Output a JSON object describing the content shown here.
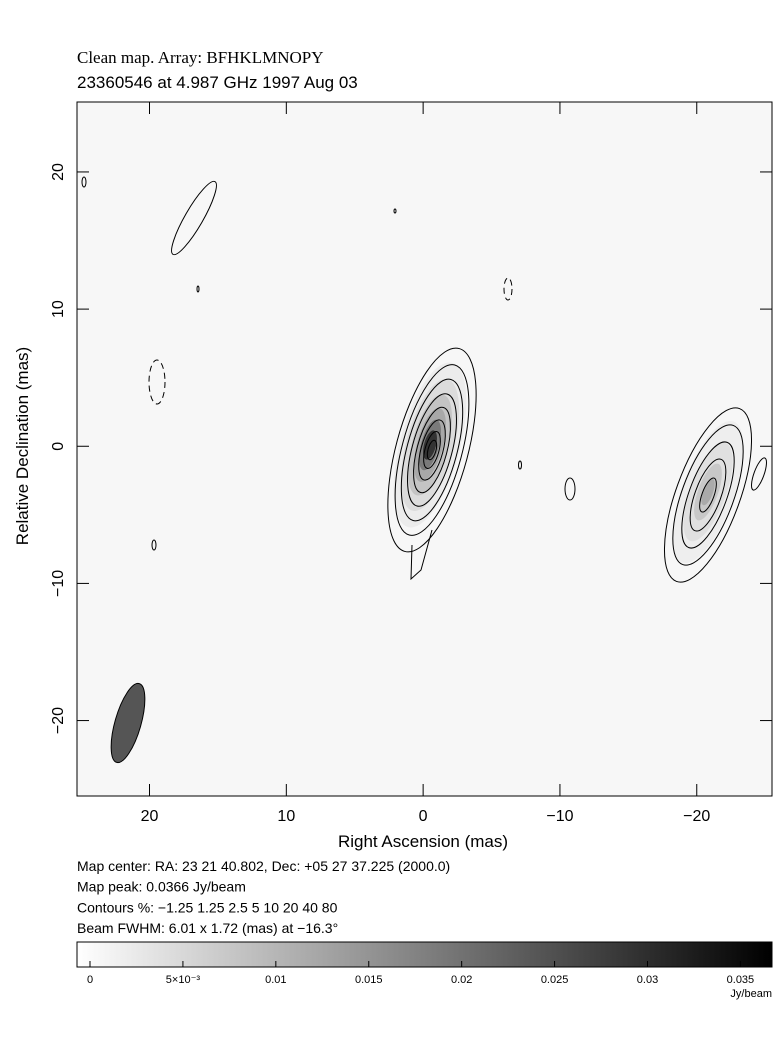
{
  "chart_data": {
    "type": "map",
    "title": "Clean map.  Array: BFHKLMNOPY",
    "subtitle": "23360546 at 4.987 GHz 1997 Aug 03",
    "x_label": "Right Ascension  (mas)",
    "y_label": "Relative Declination  (mas)",
    "xlim": [
      25.3,
      -25.5
    ],
    "ylim": [
      -25.5,
      25.1
    ],
    "xticks": [
      20,
      10,
      0,
      {
        "value": -10,
        "label": "−10"
      },
      {
        "value": -20,
        "label": "−20"
      }
    ],
    "yticks": [
      {
        "value": -20,
        "label": "−20"
      },
      {
        "value": -10,
        "label": "−10"
      },
      0,
      10,
      20
    ],
    "notes": [
      "Map center:  RA: 23 21 40.802,  Dec: +05 27 37.225 (2000.0)",
      "Map peak: 0.0366 Jy/beam",
      "Contours %: −1.25 1.25 2.5 5 10 20 40 80",
      "Beam FWHM: 6.01 x 1.72 (mas) at −16.3°"
    ],
    "colorbar": {
      "lim": [
        -0.0007,
        0.0367
      ],
      "ticks": [
        0,
        {
          "value": 0.005,
          "label": "5×10⁻³"
        },
        0.01,
        0.015,
        0.02,
        0.025,
        0.03,
        0.035
      ],
      "label": "Jy/beam"
    }
  }
}
